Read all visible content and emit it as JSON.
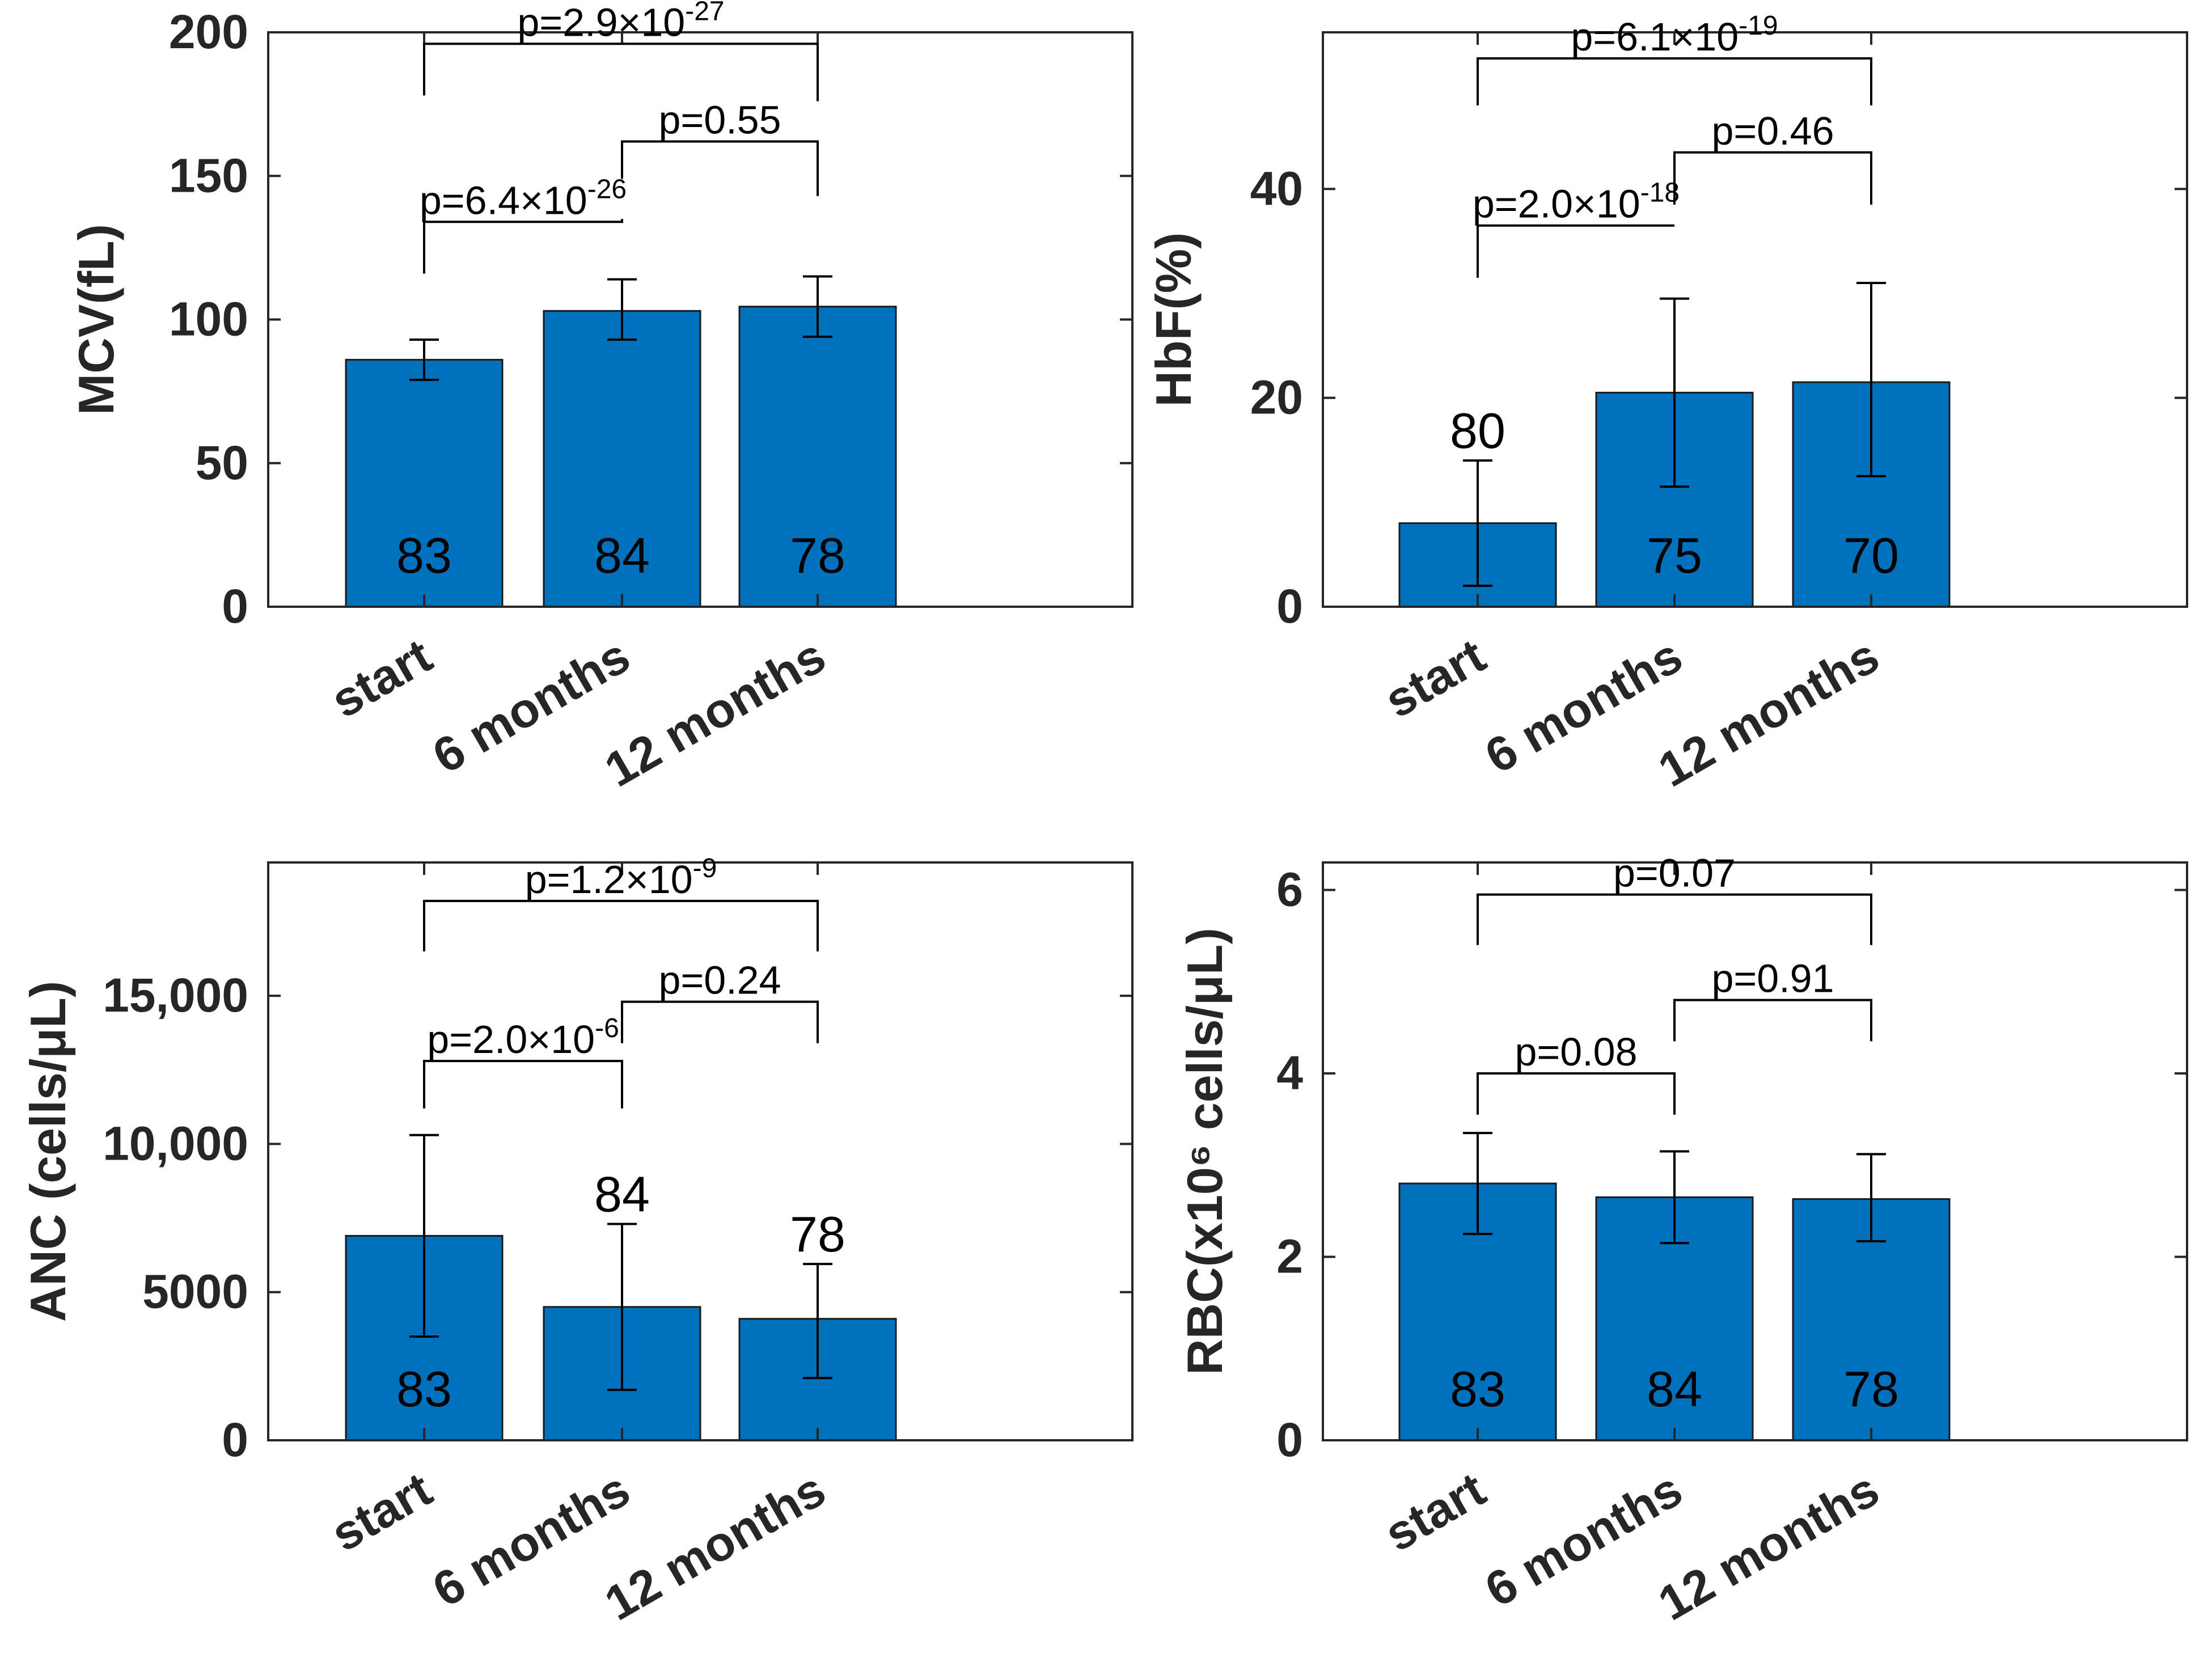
{
  "colors": {
    "bar": "#0072BD",
    "axis": "#262626"
  },
  "chart_data": [
    {
      "type": "bar",
      "id": "mcv",
      "ylabel": "MCV(fL)",
      "categories": [
        "start",
        "6 months",
        "12 months"
      ],
      "values": [
        86,
        103,
        104.5
      ],
      "errors": [
        [
          79,
          93
        ],
        [
          93,
          114
        ],
        [
          94,
          115
        ]
      ],
      "n_labels": [
        "83",
        "84",
        "78"
      ],
      "n_label_position": [
        "inside",
        "inside",
        "inside"
      ],
      "ylim": [
        0,
        200
      ],
      "yticks": [
        0,
        50,
        100,
        150,
        200
      ],
      "ytick_labels": [
        "0",
        "50",
        "100",
        "150",
        "200"
      ],
      "comparisons": [
        {
          "from": 0,
          "to": 1,
          "base": "p=6.4×10",
          "exp": "-26",
          "level": 134,
          "drop_left": 116,
          "drop_right": 135
        },
        {
          "from": 1,
          "to": 2,
          "base": "p=0.55",
          "exp": "",
          "level": 162,
          "drop_left": 149,
          "drop_right": 143
        },
        {
          "from": 0,
          "to": 2,
          "base": "p=2.9×10",
          "exp": "-27",
          "level": 196,
          "drop_left": 178,
          "drop_right": 176
        }
      ]
    },
    {
      "type": "bar",
      "id": "hbf",
      "ylabel": "HbF(%)",
      "categories": [
        "start",
        "6 months",
        "12 months"
      ],
      "values": [
        8,
        20.5,
        21.5
      ],
      "errors": [
        [
          2,
          14
        ],
        [
          11.5,
          29.5
        ],
        [
          12.5,
          31
        ]
      ],
      "n_labels": [
        "80",
        "75",
        "70"
      ],
      "n_label_position": [
        "above",
        "inside",
        "inside"
      ],
      "ylim": [
        0,
        55
      ],
      "yticks": [
        0,
        20,
        40
      ],
      "ytick_labels": [
        "0",
        "20",
        "40"
      ],
      "comparisons": [
        {
          "from": 0,
          "to": 1,
          "base": "p=2.0×10",
          "exp": "-18",
          "level": 36.5,
          "drop_left": 31.5,
          "drop_right": 36.5
        },
        {
          "from": 1,
          "to": 2,
          "base": "p=0.46",
          "exp": "",
          "level": 43.5,
          "drop_left": 38.5,
          "drop_right": 38.5
        },
        {
          "from": 0,
          "to": 2,
          "base": "p=6.1×10",
          "exp": "-19",
          "level": 52.5,
          "drop_left": 48,
          "drop_right": 48
        }
      ]
    },
    {
      "type": "bar",
      "id": "anc",
      "ylabel": "ANC (cells/μL)",
      "categories": [
        "start",
        "6 months",
        "12 months"
      ],
      "values": [
        6900,
        4500,
        4100
      ],
      "errors": [
        [
          3500,
          10300
        ],
        [
          1700,
          7300
        ],
        [
          2100,
          5950
        ]
      ],
      "n_labels": [
        "83",
        "84",
        "78"
      ],
      "n_label_position": [
        "inside",
        "above",
        "above"
      ],
      "ylim": [
        0,
        19500
      ],
      "yticks": [
        0,
        5000,
        10000,
        15000
      ],
      "ytick_labels": [
        "0",
        "5000",
        "10,000",
        "15,000"
      ],
      "comparisons": [
        {
          "from": 0,
          "to": 1,
          "base": "p=2.0×10",
          "exp": "-6",
          "level": 12800,
          "drop_left": 11200,
          "drop_right": 11200
        },
        {
          "from": 1,
          "to": 2,
          "base": "p=0.24",
          "exp": "",
          "level": 14800,
          "drop_left": 13400,
          "drop_right": 13400
        },
        {
          "from": 0,
          "to": 2,
          "base": "p=1.2×10",
          "exp": "-9",
          "level": 18200,
          "drop_left": 16500,
          "drop_right": 16500
        }
      ]
    },
    {
      "type": "bar",
      "id": "rbc",
      "ylabel": "RBC(x10⁶ cells/μL)",
      "categories": [
        "start",
        "6 months",
        "12 months"
      ],
      "values": [
        2.8,
        2.65,
        2.63
      ],
      "errors": [
        [
          2.25,
          3.35
        ],
        [
          2.15,
          3.15
        ],
        [
          2.17,
          3.12
        ]
      ],
      "n_labels": [
        "83",
        "84",
        "78"
      ],
      "n_label_position": [
        "inside",
        "inside",
        "inside"
      ],
      "ylim": [
        0,
        6.3
      ],
      "yticks": [
        0,
        2,
        4,
        6
      ],
      "ytick_labels": [
        "0",
        "2",
        "4",
        "6"
      ],
      "comparisons": [
        {
          "from": 0,
          "to": 1,
          "base": "p=0.08",
          "exp": "",
          "level": 4.0,
          "drop_left": 3.55,
          "drop_right": 3.55
        },
        {
          "from": 1,
          "to": 2,
          "base": "p=0.91",
          "exp": "",
          "level": 4.8,
          "drop_left": 4.35,
          "drop_right": 4.35
        },
        {
          "from": 0,
          "to": 2,
          "base": "p=0.07",
          "exp": "",
          "level": 5.95,
          "drop_left": 5.4,
          "drop_right": 5.4
        }
      ]
    }
  ]
}
